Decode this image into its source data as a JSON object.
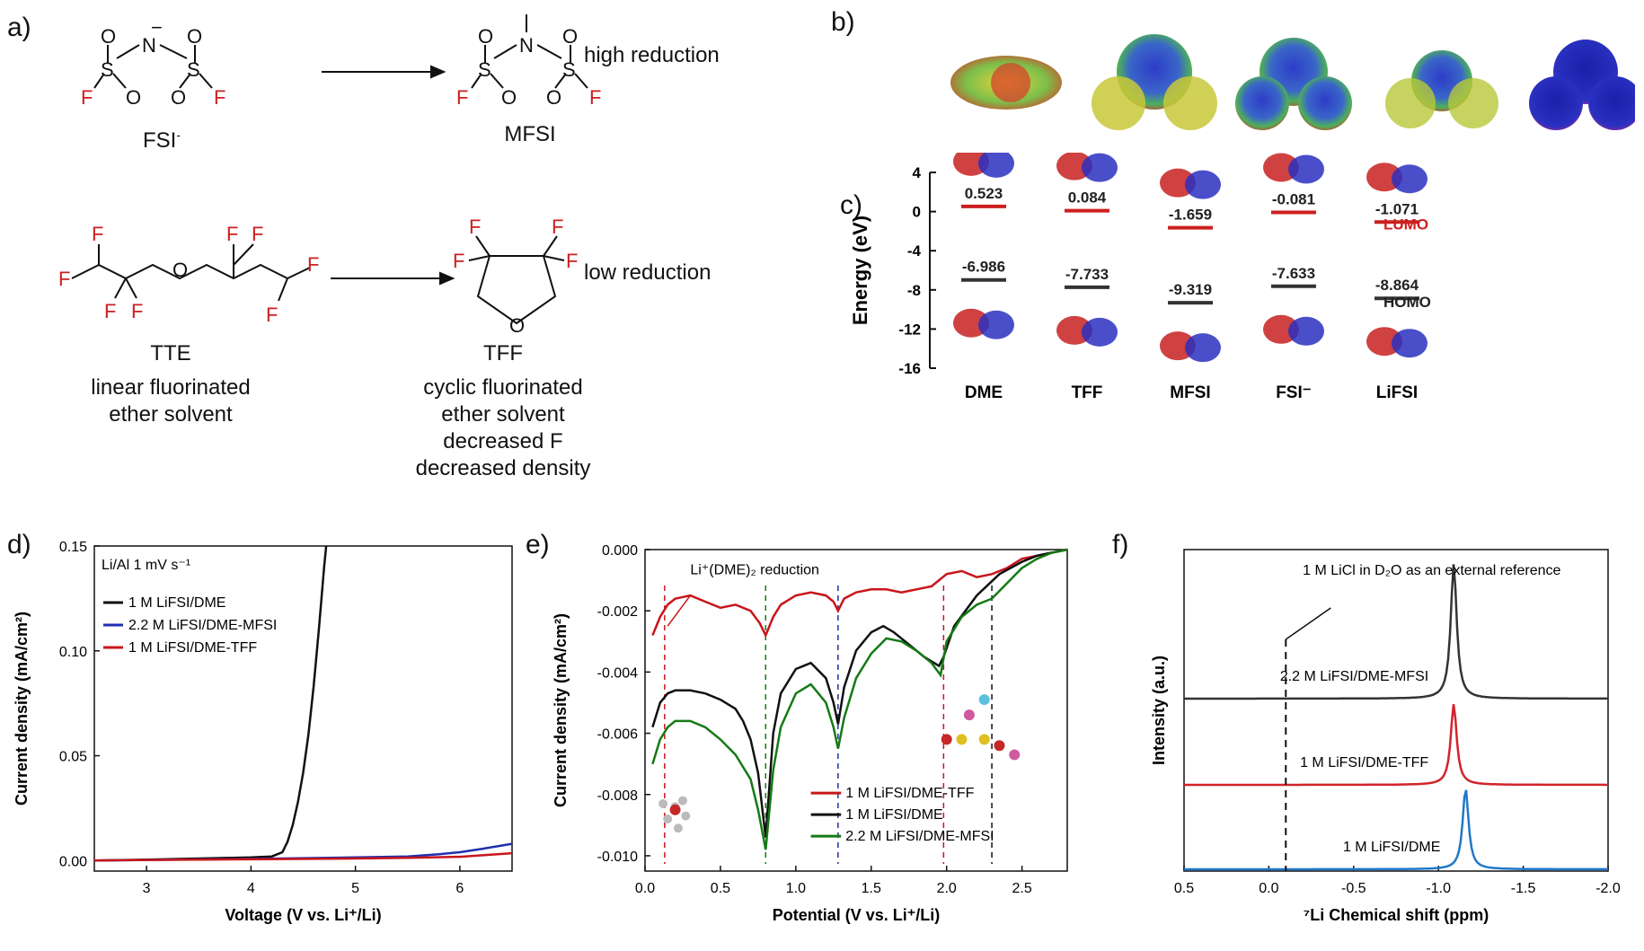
{
  "panel_a": {
    "label": "a)",
    "rows": [
      {
        "left_name": "FSI",
        "left_charge": "-",
        "right_name": "MFSI",
        "note": "high reduction"
      },
      {
        "left_name": "TTE",
        "left_desc": [
          "linear fluorinated",
          "ether solvent"
        ],
        "right_name": "TFF",
        "right_desc": [
          "cyclic fluorinated",
          "ether solvent",
          "decreased F",
          "decreased density"
        ],
        "note": "low reduction"
      }
    ],
    "atoms": {
      "F": "F",
      "S": "S",
      "N": "N",
      "O": "O",
      "minus": "−"
    }
  },
  "panel_b": {
    "label": "b)",
    "molecules": [
      "DME",
      "TFF",
      "MFSI",
      "FSI",
      "LiFSI"
    ]
  },
  "chart_data": [
    {
      "id": "c",
      "label": "c)",
      "type": "bar",
      "categories": [
        "DME",
        "TFF",
        "MFSI",
        "FSI⁻",
        "LiFSI"
      ],
      "ylabel": "Energy (eV)",
      "ylim": [
        -16,
        4
      ],
      "yticks": [
        4,
        0,
        -4,
        -8,
        -12,
        -16
      ],
      "series": [
        {
          "name": "LUMO",
          "color": "#cc1f1f",
          "values": [
            0.523,
            0.084,
            -1.659,
            -0.081,
            -1.071
          ],
          "value_labels": [
            "0.523",
            "0.084",
            "-1.659",
            "-0.081",
            "-1.071"
          ]
        },
        {
          "name": "HOMO",
          "color": "#333333",
          "values": [
            -6.986,
            -7.733,
            -9.319,
            -7.633,
            -8.864
          ],
          "value_labels": [
            "-6.986",
            "-7.733",
            "-9.319",
            "-7.633",
            "-8.864"
          ]
        }
      ]
    },
    {
      "id": "d",
      "label": "d)",
      "type": "line",
      "xlabel": "Voltage (V vs. Li⁺/Li)",
      "ylabel": "Current density (mA/cm²)",
      "xlim": [
        2.5,
        6.5
      ],
      "ylim": [
        -0.005,
        0.15
      ],
      "xticks": [
        3,
        4,
        5,
        6
      ],
      "yticks": [
        0.0,
        0.05,
        0.1,
        0.15
      ],
      "ytick_labels": [
        "0.00",
        "0.05",
        "0.10",
        "0.15"
      ],
      "annotation": "Li/Al 1 mV s⁻¹",
      "series": [
        {
          "name": "1 M LiFSI/DME",
          "color": "#111111",
          "x": [
            2.5,
            3.0,
            3.5,
            4.0,
            4.2,
            4.3,
            4.35,
            4.4,
            4.45,
            4.5,
            4.55,
            4.6,
            4.65,
            4.7,
            4.72
          ],
          "y": [
            0.0,
            0.0005,
            0.001,
            0.0015,
            0.002,
            0.004,
            0.009,
            0.017,
            0.028,
            0.042,
            0.06,
            0.083,
            0.11,
            0.14,
            0.15
          ]
        },
        {
          "name": "2.2 M LiFSI/DME-MFSI",
          "color": "#1f2fb0",
          "x": [
            2.5,
            3.0,
            4.0,
            5.0,
            5.5,
            5.8,
            6.0,
            6.2,
            6.5
          ],
          "y": [
            0.0,
            0.0003,
            0.0008,
            0.0015,
            0.002,
            0.003,
            0.004,
            0.0055,
            0.008
          ]
        },
        {
          "name": "1 M LiFSI/DME-TFF",
          "color": "#c8161b",
          "x": [
            2.5,
            3.0,
            4.0,
            5.0,
            5.5,
            6.0,
            6.2,
            6.5
          ],
          "y": [
            0.0,
            0.0003,
            0.0006,
            0.001,
            0.0013,
            0.0018,
            0.0025,
            0.0035
          ]
        }
      ]
    },
    {
      "id": "e",
      "label": "e)",
      "type": "line",
      "xlabel": "Potential (V vs. Li⁺/Li)",
      "ylabel": "Current density (mA/cm²)",
      "xlim": [
        0.0,
        2.8
      ],
      "ylim": [
        -0.0105,
        0.0
      ],
      "xticks": [
        0.0,
        0.5,
        1.0,
        1.5,
        2.0,
        2.5
      ],
      "xtick_labels": [
        "0.0",
        "0.5",
        "1.0",
        "1.5",
        "2.0",
        "2.5"
      ],
      "yticks": [
        0.0,
        -0.002,
        -0.004,
        -0.006,
        -0.008,
        -0.01
      ],
      "ytick_labels": [
        "0.000",
        "-0.002",
        "-0.004",
        "-0.006",
        "-0.008",
        "-0.010"
      ],
      "annotation": "Li⁺(DME)₂ reduction",
      "dashed_markers": [
        0.13,
        0.8,
        1.28,
        1.98,
        2.3
      ],
      "series": [
        {
          "name": "1 M LiFSI/DME-TFF",
          "color": "#c8161b",
          "x": [
            0.05,
            0.1,
            0.15,
            0.2,
            0.3,
            0.4,
            0.5,
            0.6,
            0.7,
            0.76,
            0.8,
            0.85,
            0.9,
            1.0,
            1.1,
            1.2,
            1.25,
            1.28,
            1.32,
            1.4,
            1.5,
            1.6,
            1.7,
            1.8,
            1.9,
            1.95,
            2.0,
            2.1,
            2.2,
            2.3,
            2.4,
            2.5,
            2.6,
            2.7,
            2.8
          ],
          "y": [
            -0.0028,
            -0.0022,
            -0.0018,
            -0.0016,
            -0.0015,
            -0.0017,
            -0.0019,
            -0.0018,
            -0.002,
            -0.0024,
            -0.0028,
            -0.0022,
            -0.0018,
            -0.0015,
            -0.0014,
            -0.0015,
            -0.0017,
            -0.002,
            -0.0016,
            -0.0014,
            -0.0013,
            -0.0013,
            -0.0014,
            -0.0013,
            -0.0012,
            -0.001,
            -0.0008,
            -0.0007,
            -0.0009,
            -0.0008,
            -0.0006,
            -0.0003,
            -0.0002,
            -0.0001,
            0.0
          ]
        },
        {
          "name": "1 M LiFSI/DME",
          "color": "#111111",
          "x": [
            0.05,
            0.1,
            0.15,
            0.2,
            0.3,
            0.4,
            0.5,
            0.6,
            0.65,
            0.7,
            0.75,
            0.8,
            0.85,
            0.9,
            1.0,
            1.1,
            1.2,
            1.25,
            1.28,
            1.32,
            1.4,
            1.5,
            1.58,
            1.65,
            1.75,
            1.85,
            1.95,
            1.98,
            2.05,
            2.2,
            2.35,
            2.5,
            2.6,
            2.7,
            2.8
          ],
          "y": [
            -0.0058,
            -0.005,
            -0.0047,
            -0.0046,
            -0.0046,
            -0.0047,
            -0.0049,
            -0.0052,
            -0.0056,
            -0.0062,
            -0.0073,
            -0.0094,
            -0.006,
            -0.0047,
            -0.0039,
            -0.0037,
            -0.0042,
            -0.005,
            -0.0057,
            -0.0045,
            -0.0033,
            -0.0027,
            -0.0025,
            -0.0027,
            -0.0031,
            -0.0035,
            -0.0038,
            -0.0035,
            -0.0025,
            -0.0015,
            -0.0008,
            -0.0004,
            -0.0002,
            -0.0001,
            0.0
          ]
        },
        {
          "name": "2.2 M LiFSI/DME-MFSI",
          "color": "#147a14",
          "x": [
            0.05,
            0.1,
            0.15,
            0.2,
            0.3,
            0.4,
            0.5,
            0.6,
            0.7,
            0.75,
            0.8,
            0.85,
            0.9,
            1.0,
            1.1,
            1.2,
            1.25,
            1.28,
            1.32,
            1.4,
            1.5,
            1.6,
            1.7,
            1.8,
            1.9,
            1.96,
            2.0,
            2.1,
            2.2,
            2.3,
            2.4,
            2.5,
            2.6,
            2.7,
            2.8
          ],
          "y": [
            -0.007,
            -0.0062,
            -0.0058,
            -0.0056,
            -0.0056,
            -0.0058,
            -0.0062,
            -0.0067,
            -0.0075,
            -0.0085,
            -0.0098,
            -0.0072,
            -0.0058,
            -0.0047,
            -0.0044,
            -0.005,
            -0.0058,
            -0.0065,
            -0.0055,
            -0.0042,
            -0.0034,
            -0.0029,
            -0.003,
            -0.0033,
            -0.0037,
            -0.0041,
            -0.003,
            -0.0022,
            -0.0018,
            -0.0016,
            -0.0011,
            -0.0006,
            -0.0003,
            -0.0001,
            0.0
          ]
        }
      ]
    },
    {
      "id": "f",
      "label": "f)",
      "type": "line",
      "xlabel": "⁷Li Chemical shift (ppm)",
      "ylabel": "Intensity (a.u.)",
      "xlim": [
        0.5,
        -2.0
      ],
      "xticks": [
        0.5,
        0.0,
        -0.5,
        -1.0,
        -1.5,
        -2.0
      ],
      "xtick_labels": [
        "0.5",
        "0.0",
        "-0.5",
        "-1.0",
        "-1.5",
        "-2.0"
      ],
      "reference_line_x": -0.1,
      "annotation": "1 M LiCl in D₂O as an external reference",
      "series": [
        {
          "name": "2.2 M LiFSI/DME-MFSI",
          "color": "#333333",
          "peak": -1.09
        },
        {
          "name": "1 M LiFSI/DME-TFF",
          "color": "#d2232a",
          "peak": -1.09
        },
        {
          "name": "1 M LiFSI/DME",
          "color": "#1f78c8",
          "peak": -1.16
        }
      ]
    }
  ]
}
